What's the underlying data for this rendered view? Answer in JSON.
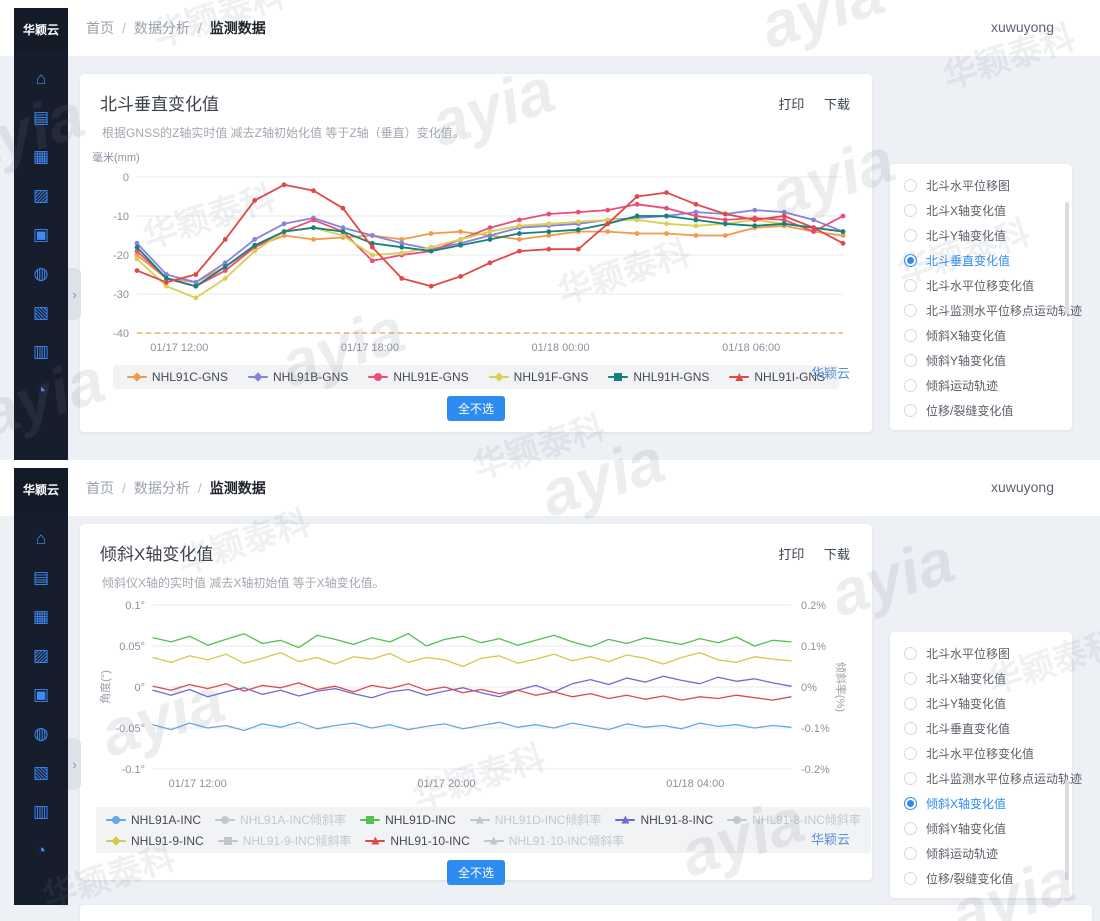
{
  "header": {
    "logo": "华颖云",
    "breadcrumb": [
      "首页",
      "数据分析",
      "监测数据"
    ],
    "username": "xuwuyong"
  },
  "sidebar": {
    "icons": [
      {
        "name": "home",
        "glyph": "⌂"
      },
      {
        "name": "dashboard",
        "glyph": "▤"
      },
      {
        "name": "projects",
        "glyph": "▦"
      },
      {
        "name": "map",
        "glyph": "▨"
      },
      {
        "name": "devices",
        "glyph": "▣"
      },
      {
        "name": "alerts",
        "glyph": "◍"
      },
      {
        "name": "media",
        "glyph": "▧"
      },
      {
        "name": "reports",
        "glyph": "▥"
      },
      {
        "name": "analytics",
        "glyph": "◔"
      }
    ],
    "collapse_arrow": "›"
  },
  "colors": {
    "accent": "#2d8cf0",
    "sidebar_bg": "#161e2d",
    "threshold": "#e3a23a"
  },
  "watermark": {
    "brand": "ayia",
    "company": "华颖泰科"
  },
  "panels": [
    {
      "title": "北斗垂直变化值",
      "subtitle": "根据GNSS的Z轴实时值 减去Z轴初始化值 等于Z轴（垂直）变化值。",
      "print_label": "打印",
      "download_label": "下载",
      "select_all_label": "全不选",
      "cloud_label": "华颖云",
      "selected_option": "北斗垂直变化值",
      "radio_options": [
        "北斗水平位移图",
        "北斗X轴变化值",
        "北斗Y轴变化值",
        "北斗垂直变化值",
        "北斗水平位移变化值",
        "北斗监测水平位移点运动轨迹",
        "倾斜X轴变化值",
        "倾斜Y轴变化值",
        "倾斜运动轨迹",
        "位移/裂缝变化值"
      ],
      "chart_data": {
        "type": "line",
        "title": "北斗垂直变化值",
        "ylabel": "毫米(mm)",
        "ylim": [
          -40,
          0
        ],
        "yticks": [
          {
            "v": 0,
            "left": "0"
          },
          {
            "v": -10,
            "left": "-10"
          },
          {
            "v": -20,
            "left": "-20"
          },
          {
            "v": -30,
            "left": "-30"
          },
          {
            "v": -40,
            "left": "-40"
          }
        ],
        "xticklabels": [
          "01/17 12:00",
          "01/17 18:00",
          "01/18 00:00",
          "01/18 06:00"
        ],
        "xtick_positions": [
          0.06,
          0.33,
          0.6,
          0.87
        ],
        "threshold": {
          "value": -40,
          "color": "#e3a23a",
          "style": "dashed"
        },
        "grid": true,
        "legend_rows": [
          6
        ],
        "legend": [
          {
            "label": "NHL91C-GNS",
            "color": "#f2994a",
            "shape": "diamond",
            "enabled": true
          },
          {
            "label": "NHL91B-GNS",
            "color": "#8583dc",
            "shape": "diamond",
            "enabled": true
          },
          {
            "label": "NHL91E-GNS",
            "color": "#ea4d77",
            "shape": "circle",
            "enabled": true
          },
          {
            "label": "NHL91F-GNS",
            "color": "#d9cf52",
            "shape": "diamond",
            "enabled": true
          },
          {
            "label": "NHL91H-GNS",
            "color": "#14827c",
            "shape": "square",
            "enabled": true
          },
          {
            "label": "NHL91I-GNS",
            "color": "#e14848",
            "shape": "triangle",
            "enabled": true
          }
        ],
        "series": [
          {
            "name": "NHL91C-GNS",
            "color": "#f2994a",
            "values": [
              -20,
              -26,
              -27,
              -23,
              -18,
              -15,
              -16,
              -15.5,
              -15,
              -16,
              -14.5,
              -14,
              -15,
              -16,
              -15,
              -14,
              -14,
              -14.5,
              -14.5,
              -15,
              -15,
              -13,
              -12.5,
              -14,
              -15
            ]
          },
          {
            "name": "NHL91B-GNS",
            "color": "#8583dc",
            "values": [
              -17,
              -25,
              -27,
              -22,
              -16,
              -12,
              -10.5,
              -13,
              -15,
              -17,
              -18.5,
              -17,
              -15,
              -13,
              -12.5,
              -12,
              -11,
              -10.5,
              -10,
              -9,
              -9.5,
              -8.5,
              -9,
              -11,
              -14
            ]
          },
          {
            "name": "NHL91E-GNS",
            "color": "#ea4d77",
            "values": [
              -19,
              -26,
              -28,
              -24,
              -18,
              -14,
              -11,
              -14,
              -21.5,
              -20,
              -19,
              -16,
              -13,
              -11,
              -9.5,
              -9,
              -8.5,
              -7,
              -8,
              -10,
              -11,
              -10.5,
              -11,
              -14,
              -10
            ]
          },
          {
            "name": "NHL91F-GNS",
            "color": "#d9cf52",
            "values": [
              -21,
              -28,
              -31,
              -26,
              -19,
              -14,
              -13,
              -15,
              -20,
              -19.5,
              -18,
              -16,
              -14,
              -12.5,
              -12,
              -11.5,
              -11,
              -11,
              -12,
              -12.5,
              -12,
              -11,
              -12,
              -13,
              -14
            ]
          },
          {
            "name": "NHL91H-GNS",
            "color": "#14827c",
            "values": [
              -18,
              -26,
              -28,
              -23,
              -17.5,
              -14,
              -13,
              -14,
              -17,
              -18,
              -19,
              -17.5,
              -16,
              -14.5,
              -14,
              -13.5,
              -12,
              -10,
              -10,
              -11,
              -12,
              -12.5,
              -12,
              -13,
              -14
            ]
          },
          {
            "name": "NHL91I-GNS",
            "color": "#e14848",
            "values": [
              -24,
              -27,
              -25,
              -16,
              -6,
              -2,
              -3.5,
              -8,
              -18,
              -26,
              -28,
              -25.5,
              -22,
              -19,
              -18.5,
              -18.5,
              -12,
              -5,
              -4,
              -7,
              -9.5,
              -11,
              -10,
              -13,
              -17
            ]
          }
        ]
      }
    },
    {
      "title": "倾斜X轴变化值",
      "subtitle": "倾斜仪X轴的实时值 减去X轴初始值 等于X轴变化值。",
      "print_label": "打印",
      "download_label": "下载",
      "select_all_label": "全不选",
      "cloud_label": "华颖云",
      "selected_option": "倾斜X轴变化值",
      "radio_options": [
        "北斗水平位移图",
        "北斗X轴变化值",
        "北斗Y轴变化值",
        "北斗垂直变化值",
        "北斗水平位移变化值",
        "北斗监测水平位移点运动轨迹",
        "倾斜X轴变化值",
        "倾斜Y轴变化值",
        "倾斜运动轨迹",
        "位移/裂缝变化值"
      ],
      "chart_data": {
        "type": "line",
        "title": "倾斜X轴变化值",
        "ylabel": "角度(°)",
        "y2label": "倾斜率(%)",
        "ylim": [
          -0.1,
          0.1
        ],
        "yticks": [
          {
            "v": 0.1,
            "left": "0.1°",
            "right": "0.2%"
          },
          {
            "v": 0.05,
            "left": "0.05°",
            "right": "0.1%"
          },
          {
            "v": 0,
            "left": "0°",
            "right": "0%"
          },
          {
            "v": -0.05,
            "left": "-0.05°",
            "right": "-0.1%"
          },
          {
            "v": -0.1,
            "left": "-0.1°",
            "right": "-0.2%"
          }
        ],
        "xticklabels": [
          "01/17 12:00",
          "01/17 20:00",
          "01/18 04:00"
        ],
        "xtick_positions": [
          0.07,
          0.46,
          0.85
        ],
        "grid": true,
        "legend_rows": [
          6,
          4
        ],
        "legend": [
          {
            "label": "NHL91A-INC",
            "color": "#67a7e3",
            "shape": "circle",
            "enabled": true
          },
          {
            "label": "NHL91A-INC倾斜率",
            "color": "#c3c7cd",
            "shape": "circle",
            "enabled": false
          },
          {
            "label": "NHL91D-INC",
            "color": "#51c151",
            "shape": "square",
            "enabled": true
          },
          {
            "label": "NHL91D-INC倾斜率",
            "color": "#c3c7cd",
            "shape": "triangle",
            "enabled": false
          },
          {
            "label": "NHL91-8-INC",
            "color": "#6f6ad8",
            "shape": "triangle",
            "enabled": true
          },
          {
            "label": "NHL91-8-INC倾斜率",
            "color": "#c3c7cd",
            "shape": "circle",
            "enabled": false
          },
          {
            "label": "NHL91-9-INC",
            "color": "#d6c84a",
            "shape": "diamond",
            "enabled": true
          },
          {
            "label": "NHL91-9-INC倾斜率",
            "color": "#c3c7cd",
            "shape": "square",
            "enabled": false
          },
          {
            "label": "NHL91-10-INC",
            "color": "#df4b4b",
            "shape": "triangle",
            "enabled": true
          },
          {
            "label": "NHL91-10-INC倾斜率",
            "color": "#c3c7cd",
            "shape": "triangle",
            "enabled": false
          }
        ],
        "series": [
          {
            "name": "NHL91D-INC",
            "color": "#51c151",
            "values": [
              0.06,
              0.055,
              0.062,
              0.051,
              0.058,
              0.065,
              0.053,
              0.057,
              0.048,
              0.063,
              0.058,
              0.052,
              0.06,
              0.055,
              0.065,
              0.05,
              0.058,
              0.062,
              0.054,
              0.059,
              0.051,
              0.057,
              0.063,
              0.055,
              0.049,
              0.058,
              0.053,
              0.06,
              0.056,
              0.052,
              0.059,
              0.054,
              0.061,
              0.05,
              0.057,
              0.055
            ]
          },
          {
            "name": "NHL91-9-INC",
            "color": "#d6c84a",
            "values": [
              0.036,
              0.03,
              0.038,
              0.033,
              0.04,
              0.029,
              0.035,
              0.042,
              0.031,
              0.036,
              0.028,
              0.037,
              0.034,
              0.041,
              0.03,
              0.036,
              0.033,
              0.025,
              0.035,
              0.038,
              0.029,
              0.034,
              0.04,
              0.032,
              0.037,
              0.031,
              0.039,
              0.035,
              0.028,
              0.036,
              0.042,
              0.033,
              0.03,
              0.037,
              0.034,
              0.032
            ]
          },
          {
            "name": "NHL91-8-INC",
            "color": "#6f6ad8",
            "values": [
              -0.004,
              -0.01,
              -0.003,
              -0.012,
              -0.006,
              -0.001,
              -0.009,
              -0.004,
              -0.011,
              -0.005,
              -0.002,
              -0.008,
              -0.013,
              -0.006,
              -0.003,
              -0.01,
              -0.005,
              -0.001,
              -0.007,
              -0.012,
              -0.004,
              0.002,
              -0.006,
              0.004,
              0.009,
              0.003,
              0.011,
              0.006,
              0.013,
              0.008,
              0.004,
              0.012,
              0.007,
              0.01,
              0.005,
              0.001
            ]
          },
          {
            "name": "NHL91-10-INC",
            "color": "#df4b4b",
            "values": [
              0.001,
              -0.004,
              0.003,
              -0.002,
              0.004,
              -0.005,
              0.002,
              -0.001,
              0.005,
              -0.003,
              0.001,
              -0.006,
              0.002,
              -0.002,
              0.004,
              -0.004,
              0,
              -0.007,
              -0.003,
              -0.008,
              -0.004,
              -0.01,
              -0.006,
              -0.012,
              -0.008,
              -0.014,
              -0.01,
              -0.015,
              -0.011,
              -0.016,
              -0.012,
              -0.014,
              -0.01,
              -0.013,
              -0.016,
              -0.012
            ]
          },
          {
            "name": "NHL91A-INC",
            "color": "#67a7e3",
            "values": [
              -0.046,
              -0.052,
              -0.044,
              -0.05,
              -0.047,
              -0.053,
              -0.045,
              -0.049,
              -0.043,
              -0.051,
              -0.047,
              -0.044,
              -0.05,
              -0.046,
              -0.052,
              -0.048,
              -0.045,
              -0.051,
              -0.047,
              -0.043,
              -0.049,
              -0.046,
              -0.05,
              -0.044,
              -0.048,
              -0.052,
              -0.045,
              -0.049,
              -0.047,
              -0.051,
              -0.044,
              -0.048,
              -0.046,
              -0.05,
              -0.047,
              -0.049
            ]
          }
        ]
      }
    }
  ]
}
